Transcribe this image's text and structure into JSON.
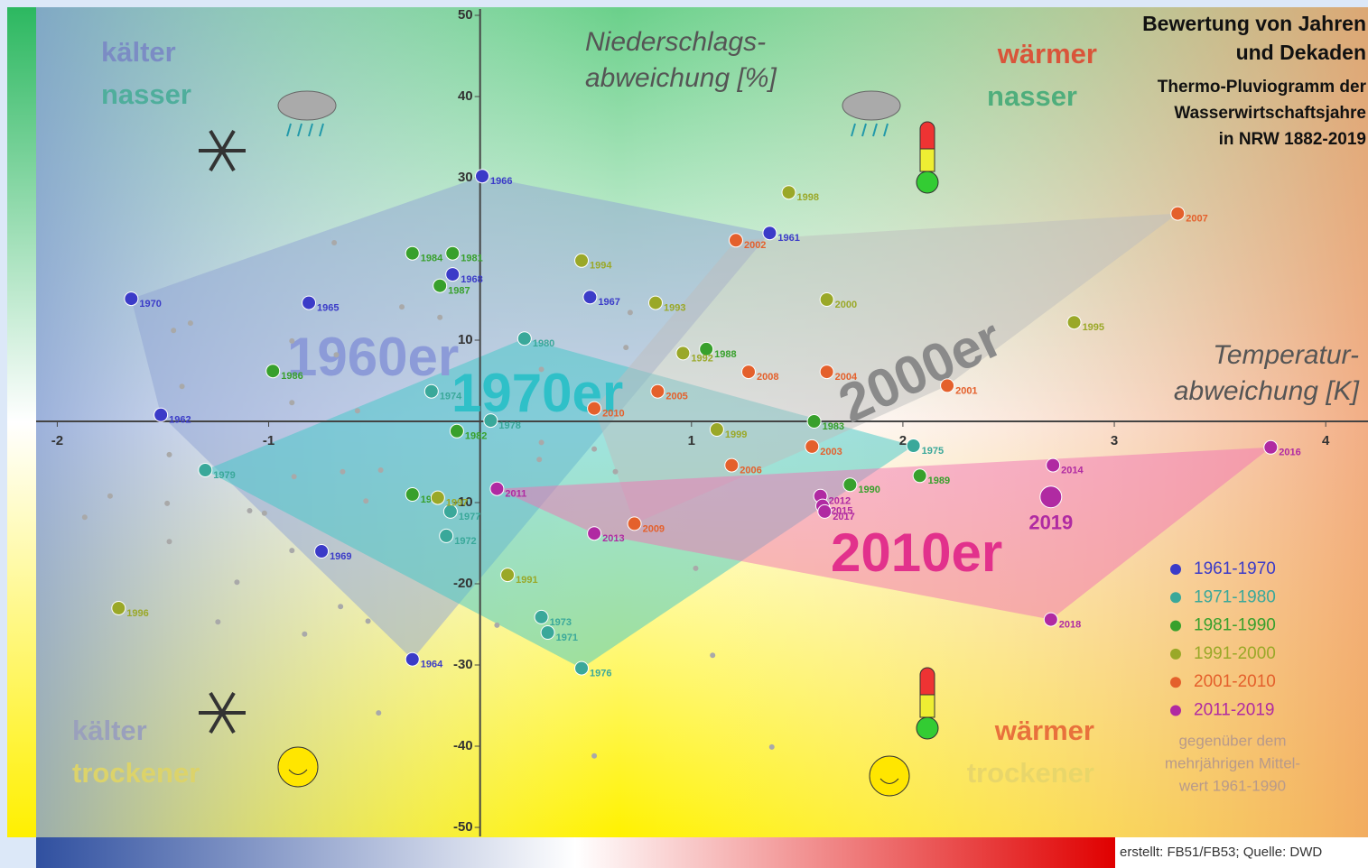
{
  "chart_data": {
    "type": "scatter",
    "title_lines": [
      "Bewertung von Jahren",
      "und Dekaden"
    ],
    "subtitle_lines": [
      "Thermo-Pluviogramm der",
      "Wasserwirtschaftsjahre",
      "in NRW 1882-2019"
    ],
    "y_label_lines": [
      "Niederschlags-",
      "abweichung [%]"
    ],
    "x_label_lines": [
      "Temperatur-",
      "abweichung [K]"
    ],
    "xlim": [
      -2.1,
      4.2
    ],
    "ylim": [
      -50,
      50
    ],
    "xticks": [
      -2,
      -1,
      1,
      2,
      3,
      4
    ],
    "yticks": [
      -50,
      -40,
      -30,
      -20,
      -10,
      10,
      30,
      40,
      50
    ],
    "quadrant_labels": [
      {
        "lines": [
          "kälter",
          "nasser"
        ],
        "colors": [
          "#7b8cc4",
          "#4fae9c"
        ]
      },
      {
        "lines": [
          "wärmer",
          "nasser"
        ],
        "colors": [
          "#d9553a",
          "#4fae7c"
        ]
      },
      {
        "lines": [
          "kälter",
          "trockener"
        ],
        "colors": [
          "#9aa0bc",
          "#dcd36a"
        ]
      },
      {
        "lines": [
          "wärmer",
          "trockener"
        ],
        "colors": [
          "#e8713c",
          "#e8d66a"
        ]
      }
    ],
    "legend_note_lines": [
      "gegenüber dem",
      "mehrjährigen Mittel-",
      "wert 1961-1990"
    ],
    "source": "erstellt: FB51/FB53; Quelle: DWD",
    "series": [
      {
        "name": "1961-1970",
        "color": "#3b3bc8",
        "hull_color": "#8fa3d3",
        "decade_label": "1960er",
        "decade_label_color": "#8c9bd8",
        "labels": [
          "1966",
          "1961",
          "1967",
          "1968",
          "1970",
          "1965",
          "1962",
          "1969",
          "1964"
        ],
        "x": [
          0.01,
          1.37,
          0.52,
          -0.13,
          -1.65,
          -0.81,
          -1.51,
          -0.75,
          -0.32
        ],
        "values": [
          30.2,
          23.2,
          15.3,
          18.1,
          15.1,
          14.6,
          0.8,
          -16,
          -29.3
        ]
      },
      {
        "name": "1971-1980",
        "color": "#3aa89a",
        "hull_color": "#3fc8c8",
        "decade_label": "1970er",
        "decade_label_color": "#2fc0c8",
        "labels": [
          "1980",
          "1974",
          "1978",
          "1975",
          "1979",
          "1977",
          "1972",
          "1973",
          "1971",
          "1976"
        ],
        "x": [
          0.21,
          -0.23,
          0.05,
          2.05,
          -1.3,
          -0.14,
          -0.16,
          0.29,
          0.32,
          0.48
        ],
        "values": [
          10.2,
          3.7,
          0.1,
          -3,
          -6,
          -11.1,
          -14.1,
          -24.1,
          -26,
          -30.4
        ]
      },
      {
        "name": "1981-1990",
        "color": "#38a02c",
        "labels": [
          "1984",
          "1981",
          "1987",
          "1986",
          "1982",
          "1985",
          "1988",
          "1983",
          "1989",
          "1990"
        ],
        "x": [
          -0.32,
          -0.13,
          -0.19,
          -0.98,
          -0.11,
          -0.32,
          1.07,
          1.58,
          2.08,
          1.75
        ],
        "values": [
          20.7,
          20.7,
          16.7,
          6.2,
          -1.2,
          -9,
          8.9,
          0,
          -6.7,
          -7.8
        ]
      },
      {
        "name": "1991-2000",
        "color": "#9aa828",
        "labels": [
          "1998",
          "1994",
          "1993",
          "2000",
          "1995",
          "1992",
          "1999",
          "1997",
          "1991",
          "1996"
        ],
        "x": [
          1.46,
          0.48,
          0.83,
          1.64,
          2.81,
          0.96,
          1.12,
          -0.2,
          0.13,
          -1.71
        ],
        "values": [
          28.2,
          19.8,
          14.6,
          15,
          12.2,
          8.4,
          -1,
          -9.4,
          -18.9,
          -23
        ]
      },
      {
        "name": "2001-2010",
        "color": "#e4602c",
        "hull_color": "#bdbdbd",
        "decade_label": "2000er",
        "decade_label_color": "#8a8a8a",
        "labels": [
          "2007",
          "2002",
          "2010",
          "2005",
          "2008",
          "2004",
          "2001",
          "2006",
          "2003",
          "2009"
        ],
        "x": [
          3.3,
          1.21,
          0.54,
          0.84,
          1.27,
          1.64,
          2.21,
          1.19,
          1.57,
          0.73
        ],
        "values": [
          25.6,
          22.3,
          1.6,
          3.7,
          6.1,
          6.1,
          4.4,
          -5.4,
          -3.1,
          -12.6
        ]
      },
      {
        "name": "2011-2019",
        "color": "#b02aa2",
        "hull_color": "#f173b4",
        "decade_label": "2010er",
        "decade_label_color": "#e2318c",
        "labels": [
          "2011",
          "2013",
          "2012",
          "2015",
          "2017",
          "2014",
          "2019",
          "2018",
          "2016"
        ],
        "x": [
          0.08,
          0.54,
          1.61,
          1.62,
          1.63,
          2.71,
          2.7,
          2.7,
          3.74
        ],
        "values": [
          -8.3,
          -13.8,
          -9.2,
          -10.4,
          -11.1,
          -5.4,
          -9.3,
          -24.4,
          -3.2
        ]
      }
    ],
    "other_points": {
      "color": "#a9a9a9",
      "x": [
        -0.69,
        -1.45,
        -1.37,
        -0.89,
        -0.19,
        -0.37,
        -0.68,
        -1.41,
        -0.89,
        -0.58,
        -1.47,
        -1.75,
        -1.87,
        -1.48,
        -1.47,
        -1.09,
        -1.02,
        -0.88,
        -0.65,
        -0.47,
        -0.54,
        -0.89,
        -0.53,
        -0.66,
        -1.24,
        -0.83,
        -0.48,
        -1.15,
        0.29,
        0.28,
        0.54,
        0.69,
        0.71,
        0.64,
        1.02,
        1.1,
        1.38,
        0.54,
        0.08,
        0.29
      ],
      "y": [
        22,
        11.2,
        12.1,
        9.9,
        12.8,
        14.1,
        8.2,
        4.3,
        2.3,
        1.3,
        -4.1,
        -9.2,
        -11.8,
        -10.1,
        -14.8,
        -11,
        -11.3,
        -6.8,
        -6.2,
        -6,
        -9.8,
        -15.9,
        -24.6,
        -22.8,
        -24.7,
        -26.2,
        -35.9,
        -19.8,
        -2.6,
        -4.7,
        -3.4,
        9.1,
        13.4,
        -6.2,
        -18.1,
        -28.8,
        -40.1,
        -41.2,
        -25.1,
        6.4
      ]
    }
  }
}
